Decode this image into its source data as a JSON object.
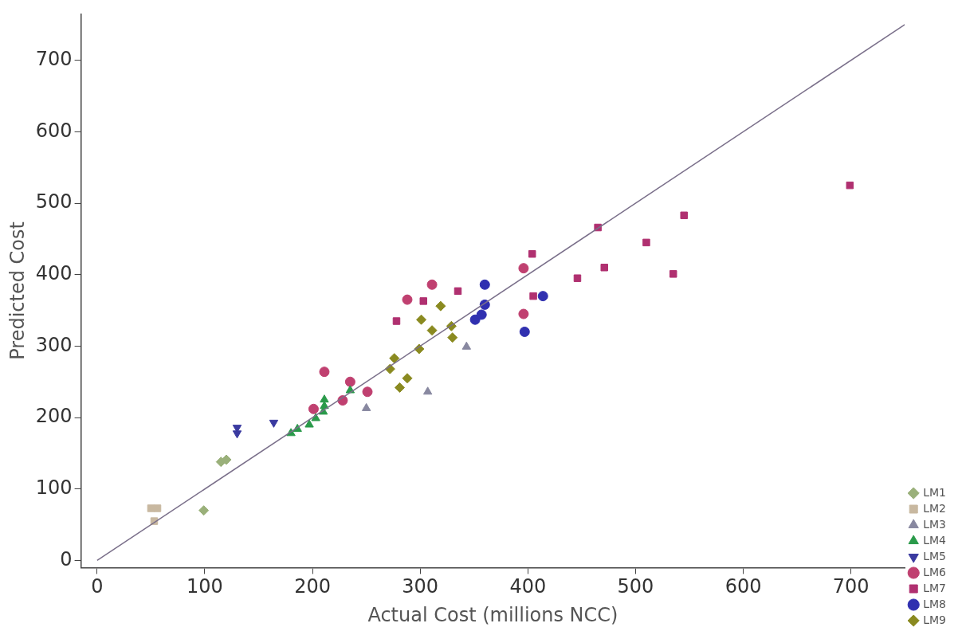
{
  "chart_data": {
    "type": "scatter",
    "xlabel": "Actual Cost (millions NCC)",
    "ylabel": "Predicted Cost",
    "xlim": [
      -15,
      750
    ],
    "ylim": [
      -10,
      765
    ],
    "xticks": [
      0,
      100,
      200,
      300,
      400,
      500,
      600,
      700
    ],
    "yticks": [
      0,
      100,
      200,
      300,
      400,
      500,
      600,
      700
    ],
    "grid": false,
    "legend": "bottom right",
    "series": [
      {
        "type": "line",
        "color": "#7a6f8a",
        "x": [
          0,
          750
        ],
        "values": [
          0,
          750
        ],
        "marker": "none",
        "line_style": "solid"
      },
      {
        "name": "LM1",
        "color": "#9ab07a",
        "marker": "diamond",
        "x": [
          99,
          115,
          120
        ],
        "values": [
          70,
          138,
          141
        ]
      },
      {
        "name": "LM2",
        "color": "#c8b8a0",
        "marker": "square",
        "x": [
          50,
          56,
          53
        ],
        "values": [
          73,
          73,
          55
        ]
      },
      {
        "name": "LM3",
        "color": "#8888a0",
        "marker": "triangle",
        "x": [
          250,
          307,
          343
        ],
        "values": [
          213,
          236,
          299
        ]
      },
      {
        "name": "LM4",
        "color": "#2a9a4a",
        "marker": "triangle",
        "x": [
          180,
          186,
          197,
          203,
          210,
          211,
          211,
          235
        ],
        "values": [
          178,
          184,
          190,
          199,
          208,
          216,
          225,
          238
        ]
      },
      {
        "name": "LM5",
        "color": "#3a3aa0",
        "marker": "triangle-down",
        "x": [
          130,
          130,
          164
        ],
        "values": [
          186,
          178,
          193
        ]
      },
      {
        "name": "LM6",
        "color": "#c04070",
        "marker": "circle",
        "x": [
          201,
          211,
          228,
          235,
          251,
          288,
          311,
          396,
          396
        ],
        "values": [
          212,
          264,
          224,
          250,
          236,
          365,
          386,
          345,
          409
        ]
      },
      {
        "name": "LM7",
        "color": "#b03070",
        "marker": "square",
        "x": [
          278,
          303,
          335,
          404,
          405,
          446,
          465,
          471,
          510,
          535,
          545,
          699
        ],
        "values": [
          335,
          363,
          377,
          429,
          370,
          395,
          466,
          410,
          445,
          401,
          483,
          525
        ]
      },
      {
        "name": "LM8",
        "color": "#3030b0",
        "marker": "circle",
        "x": [
          351,
          357,
          360,
          360,
          397,
          414
        ],
        "values": [
          337,
          344,
          358,
          386,
          320,
          370
        ]
      },
      {
        "name": "LM9",
        "color": "#8a8a20",
        "marker": "diamond",
        "x": [
          272,
          276,
          281,
          288,
          299,
          301,
          311,
          319,
          329,
          330
        ],
        "values": [
          268,
          283,
          242,
          255,
          296,
          337,
          322,
          356,
          328,
          312
        ]
      }
    ]
  }
}
